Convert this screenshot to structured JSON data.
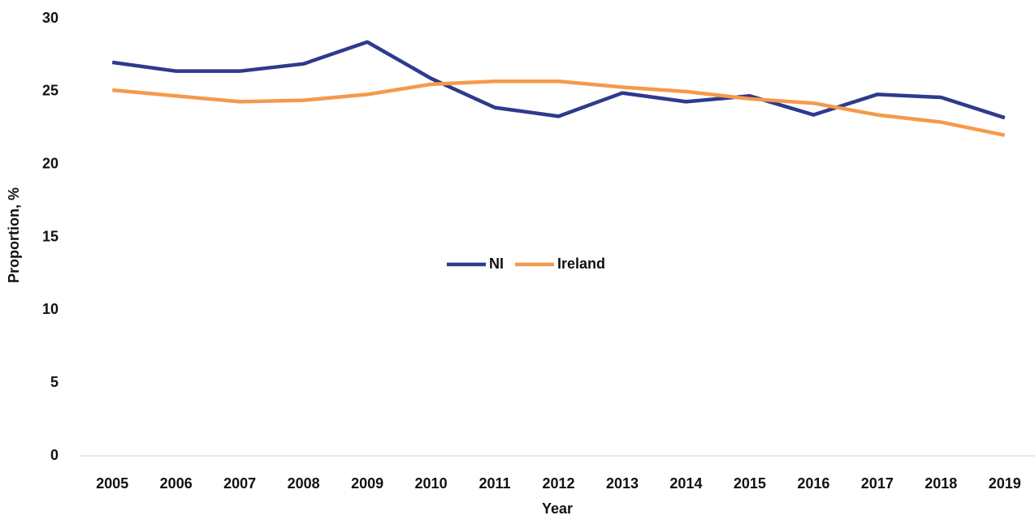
{
  "chart_data": {
    "type": "line",
    "x_label": "Year",
    "y_label": "Proportion, %",
    "categories": [
      "2005",
      "2006",
      "2007",
      "2008",
      "2009",
      "2010",
      "2011",
      "2012",
      "2013",
      "2014",
      "2015",
      "2016",
      "2017",
      "2018",
      "2019"
    ],
    "series": [
      {
        "name": "NI",
        "color": "#2e3a8c",
        "values": [
          27.0,
          26.4,
          26.4,
          26.9,
          28.4,
          25.9,
          23.9,
          23.3,
          24.9,
          24.3,
          24.7,
          23.4,
          24.8,
          24.6,
          23.2
        ]
      },
      {
        "name": "Ireland",
        "color": "#f59a4a",
        "values": [
          25.1,
          24.7,
          24.3,
          24.4,
          24.8,
          25.5,
          25.7,
          25.7,
          25.3,
          25.0,
          24.5,
          24.2,
          23.4,
          22.9,
          22.0
        ]
      }
    ],
    "ylim": [
      0,
      30
    ],
    "yticks": [
      0,
      5,
      10,
      15,
      20,
      25,
      30
    ],
    "grid": false,
    "legend": "center"
  }
}
